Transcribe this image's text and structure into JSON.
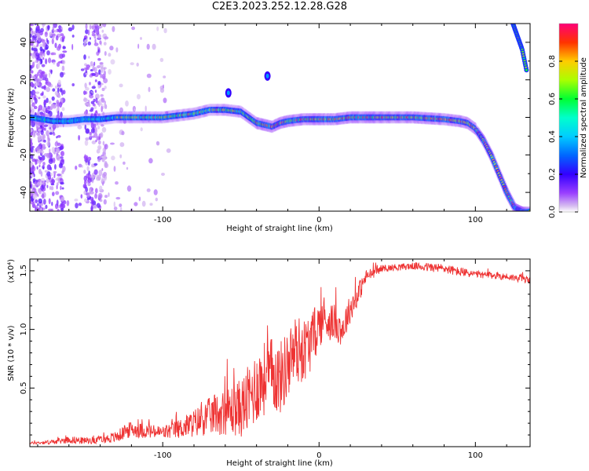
{
  "title": "C2E3.2023.252.12.28.G28",
  "chart_data": [
    {
      "type": "heatmap",
      "xlabel": "Height of straight line (km)",
      "ylabel": "Frequency (Hz)",
      "xlim": [
        -185,
        135
      ],
      "ylim": [
        -50,
        50
      ],
      "xticks": [
        -100,
        0,
        100
      ],
      "yticks": [
        -40,
        -20,
        0,
        20,
        40
      ],
      "colorbar": {
        "label": "Normalized spectral amplitude",
        "range": [
          0.0,
          1.0
        ],
        "ticks": [
          "0.0",
          "0.2",
          "0.4",
          "0.6",
          "0.8"
        ],
        "colormap": "rainbow"
      },
      "main_trace": {
        "x": [
          -185,
          -170,
          -160,
          -150,
          -140,
          -130,
          -120,
          -110,
          -100,
          -90,
          -80,
          -70,
          -60,
          -50,
          -45,
          -40,
          -35,
          -30,
          -25,
          -20,
          -10,
          0,
          10,
          20,
          40,
          60,
          80,
          90,
          95,
          100,
          105,
          110,
          115,
          120,
          125,
          130
        ],
        "y": [
          0,
          -2,
          -2,
          -1,
          -1,
          0,
          0,
          0,
          0,
          1,
          2,
          4,
          4,
          3,
          0,
          -3,
          -4,
          -5,
          -3,
          -2,
          -1,
          -1,
          -1,
          0,
          0,
          0,
          -1,
          -2,
          -3,
          -6,
          -12,
          -20,
          -30,
          -40,
          -48,
          -50
        ]
      },
      "secondary_trace": {
        "x": [
          124,
          127,
          130,
          133
        ],
        "y": [
          50,
          43,
          36,
          24
        ]
      },
      "interference": {
        "x": [
          -58,
          -33
        ],
        "y": [
          13,
          22
        ]
      }
    },
    {
      "type": "line",
      "xlabel": "Height of straight line (km)",
      "ylabel": "SNR (10 * v/v)",
      "yunit": "(x10⁴)",
      "xlim": [
        -185,
        135
      ],
      "ylim": [
        0,
        1.6
      ],
      "xticks": [
        -100,
        0,
        100
      ],
      "yticks": [
        0.5,
        1.0,
        1.5
      ],
      "series": [
        {
          "color": "#ee3333",
          "x": [
            -185,
            -170,
            -160,
            -150,
            -140,
            -130,
            -125,
            -120,
            -110,
            -100,
            -90,
            -80,
            -70,
            -60,
            -50,
            -45,
            -40,
            -35,
            -30,
            -25,
            -20,
            -15,
            -10,
            -5,
            0,
            5,
            10,
            15,
            20,
            25,
            30,
            40,
            50,
            60,
            70,
            80,
            90,
            100,
            110,
            120,
            130,
            135
          ],
          "y": [
            0.03,
            0.04,
            0.06,
            0.05,
            0.06,
            0.08,
            0.12,
            0.15,
            0.13,
            0.12,
            0.15,
            0.2,
            0.26,
            0.3,
            0.33,
            0.4,
            0.52,
            0.58,
            0.62,
            0.58,
            0.7,
            0.83,
            0.82,
            0.9,
            1.05,
            1.08,
            1.06,
            1.0,
            1.18,
            1.3,
            1.45,
            1.52,
            1.53,
            1.54,
            1.53,
            1.52,
            1.49,
            1.47,
            1.46,
            1.45,
            1.43,
            1.42
          ],
          "noise": [
            0.01,
            0.02,
            0.03,
            0.03,
            0.03,
            0.05,
            0.06,
            0.07,
            0.06,
            0.06,
            0.08,
            0.12,
            0.16,
            0.2,
            0.25,
            0.3,
            0.32,
            0.32,
            0.32,
            0.32,
            0.3,
            0.3,
            0.28,
            0.25,
            0.2,
            0.18,
            0.15,
            0.15,
            0.12,
            0.1,
            0.06,
            0.03,
            0.03,
            0.03,
            0.04,
            0.04,
            0.04,
            0.03,
            0.03,
            0.03,
            0.03,
            0.03
          ]
        }
      ]
    }
  ]
}
